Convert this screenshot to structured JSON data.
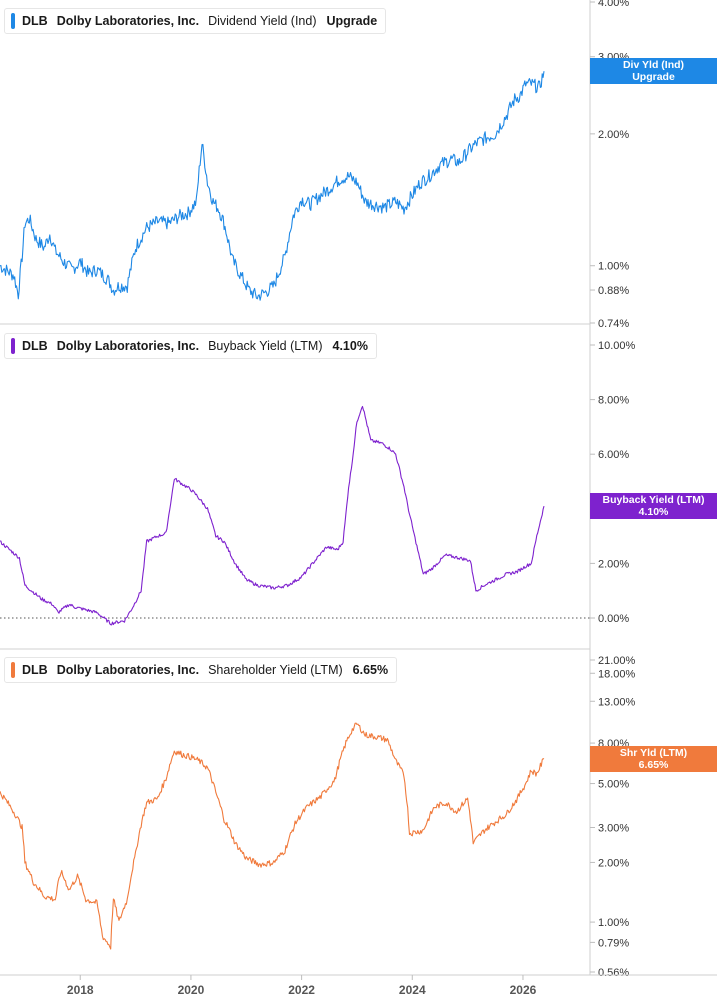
{
  "app": {
    "accent_colors": {
      "dividend": "#1e88e5",
      "buyback": "#7e22ce",
      "shareholder": "#f07a3c"
    }
  },
  "chart_data": [
    {
      "type": "line",
      "ticker": "DLB",
      "company": "Dolby Laboratories, Inc.",
      "metric": "Dividend Yield (Ind)",
      "legend_value": "Upgrade",
      "tag_lines": [
        "Div Yld (Ind)",
        "Upgrade"
      ],
      "color": "#1e88e5",
      "y_scale": "log",
      "ylim": [
        0.74,
        4.0
      ],
      "y_ticks": [
        "0.74%",
        "0.88%",
        "1.00%",
        "2.00%",
        "3.00%",
        "4.00%"
      ],
      "x_axis": "shared",
      "series": [
        {
          "x": [
            2016.55,
            2016.8,
            2016.88,
            2016.95,
            2017.0,
            2017.08,
            2017.2,
            2017.35,
            2017.45,
            2017.55,
            2017.7,
            2017.85,
            2018.0,
            2018.15,
            2018.3,
            2018.5,
            2018.6,
            2018.7,
            2018.85,
            2019.0,
            2019.2,
            2019.4,
            2019.6,
            2019.8,
            2019.95,
            2020.1,
            2020.2,
            2020.3,
            2020.4,
            2020.5,
            2020.6,
            2020.75,
            2020.9,
            2021.05,
            2021.2,
            2021.35,
            2021.5,
            2021.7,
            2021.85,
            2022.0,
            2022.15,
            2022.35,
            2022.5,
            2022.7,
            2022.85,
            2023.0,
            2023.15,
            2023.3,
            2023.5,
            2023.7,
            2023.85,
            2024.0,
            2024.15,
            2024.3,
            2024.5,
            2024.7,
            2024.85,
            2025.0,
            2025.15,
            2025.3,
            2025.5,
            2025.7,
            2025.85,
            2025.95,
            2026.05,
            2026.15,
            2026.3,
            2026.38
          ],
          "y": [
            1.0,
            0.95,
            0.86,
            1.05,
            1.25,
            1.28,
            1.15,
            1.1,
            1.18,
            1.08,
            1.02,
            0.98,
            1.02,
            0.96,
            0.98,
            0.93,
            0.88,
            0.9,
            0.9,
            1.1,
            1.22,
            1.26,
            1.25,
            1.3,
            1.32,
            1.4,
            1.9,
            1.55,
            1.4,
            1.35,
            1.25,
            1.03,
            0.95,
            0.88,
            0.85,
            0.87,
            0.9,
            1.05,
            1.3,
            1.42,
            1.38,
            1.45,
            1.5,
            1.58,
            1.6,
            1.55,
            1.4,
            1.38,
            1.36,
            1.4,
            1.35,
            1.45,
            1.55,
            1.6,
            1.7,
            1.75,
            1.72,
            1.82,
            1.9,
            1.95,
            2.0,
            2.2,
            2.4,
            2.45,
            2.6,
            2.6,
            2.55,
            2.78
          ]
        }
      ]
    },
    {
      "type": "line",
      "ticker": "DLB",
      "company": "Dolby Laboratories, Inc.",
      "metric": "Buyback Yield (LTM)",
      "legend_value": "4.10%",
      "tag_lines": [
        "Buyback Yield (LTM)",
        "4.10%"
      ],
      "color": "#7e22ce",
      "y_scale": "linear",
      "ylim": [
        0.0,
        10.0
      ],
      "y_ticks": [
        "0.00%",
        "2.00%",
        "4.00%",
        "6.00%",
        "8.00%",
        "10.00%"
      ],
      "zero_line": true,
      "x_axis": "shared",
      "series": [
        {
          "x": [
            2016.55,
            2016.9,
            2017.0,
            2017.3,
            2017.5,
            2017.6,
            2017.8,
            2017.9,
            2018.1,
            2018.3,
            2018.55,
            2018.8,
            2018.95,
            2019.1,
            2019.2,
            2019.4,
            2019.55,
            2019.7,
            2019.85,
            2020.0,
            2020.1,
            2020.3,
            2020.45,
            2020.6,
            2020.8,
            2021.0,
            2021.2,
            2021.5,
            2021.75,
            2022.0,
            2022.2,
            2022.45,
            2022.65,
            2022.75,
            2022.85,
            2022.9,
            2023.0,
            2023.1,
            2023.25,
            2023.45,
            2023.6,
            2023.7,
            2023.85,
            2023.95,
            2024.2,
            2024.35,
            2024.6,
            2024.85,
            2025.05,
            2025.15,
            2025.3,
            2025.5,
            2025.7,
            2025.9,
            2026.05,
            2026.15,
            2026.25,
            2026.38
          ],
          "y": [
            2.8,
            2.2,
            1.2,
            0.7,
            0.5,
            0.2,
            0.5,
            0.4,
            0.3,
            0.2,
            -0.2,
            -0.1,
            0.4,
            1.0,
            2.8,
            3.0,
            3.1,
            5.1,
            4.9,
            4.7,
            4.5,
            4.0,
            3.0,
            2.8,
            2.0,
            1.4,
            1.2,
            1.1,
            1.2,
            1.5,
            2.0,
            2.6,
            2.5,
            2.8,
            4.8,
            5.5,
            7.2,
            7.8,
            6.5,
            6.4,
            6.2,
            6.0,
            4.8,
            3.8,
            1.6,
            1.8,
            2.3,
            2.2,
            2.1,
            1.0,
            1.2,
            1.4,
            1.6,
            1.7,
            1.9,
            2.0,
            3.0,
            4.1
          ]
        }
      ]
    },
    {
      "type": "line",
      "ticker": "DLB",
      "company": "Dolby Laboratories, Inc.",
      "metric": "Shareholder Yield (LTM)",
      "legend_value": "6.65%",
      "tag_lines": [
        "Shr Yld (LTM)",
        "6.65%"
      ],
      "color": "#f07a3c",
      "y_scale": "log",
      "ylim": [
        0.56,
        21.0
      ],
      "y_ticks": [
        "0.56%",
        "0.79%",
        "1.00%",
        "2.00%",
        "3.00%",
        "5.00%",
        "8.00%",
        "13.00%",
        "18.00%",
        "21.00%"
      ],
      "x_axis": "shared",
      "series": [
        {
          "x": [
            2016.55,
            2016.8,
            2016.95,
            2017.0,
            2017.15,
            2017.35,
            2017.55,
            2017.65,
            2017.8,
            2017.95,
            2018.1,
            2018.3,
            2018.4,
            2018.55,
            2018.6,
            2018.7,
            2018.85,
            2019.0,
            2019.2,
            2019.4,
            2019.55,
            2019.7,
            2019.85,
            2020.0,
            2020.15,
            2020.3,
            2020.45,
            2020.6,
            2020.8,
            2021.0,
            2021.25,
            2021.5,
            2021.7,
            2021.9,
            2022.1,
            2022.35,
            2022.6,
            2022.8,
            2022.9,
            2023.0,
            2023.15,
            2023.35,
            2023.55,
            2023.7,
            2023.85,
            2023.95,
            2024.2,
            2024.4,
            2024.6,
            2024.8,
            2025.0,
            2025.1,
            2025.3,
            2025.5,
            2025.7,
            2025.9,
            2026.05,
            2026.15,
            2026.25,
            2026.38
          ],
          "y": [
            4.5,
            3.6,
            3.0,
            2.0,
            1.6,
            1.35,
            1.3,
            1.8,
            1.45,
            1.7,
            1.3,
            1.25,
            0.85,
            0.75,
            1.3,
            1.0,
            1.3,
            2.2,
            4.0,
            4.2,
            5.3,
            7.3,
            7.0,
            6.8,
            6.5,
            6.0,
            4.5,
            3.3,
            2.5,
            2.1,
            1.95,
            2.0,
            2.3,
            3.2,
            3.8,
            4.3,
            5.2,
            8.0,
            9.2,
            10.0,
            8.8,
            8.6,
            8.3,
            6.5,
            5.5,
            2.8,
            2.9,
            3.8,
            4.0,
            3.6,
            4.2,
            2.5,
            2.9,
            3.2,
            3.5,
            4.2,
            5.0,
            5.8,
            5.6,
            6.65
          ]
        }
      ]
    }
  ],
  "x_axis": {
    "ticks": [
      2018,
      2020,
      2022,
      2024,
      2026
    ],
    "xlim": [
      2016.55,
      2026.85
    ]
  }
}
